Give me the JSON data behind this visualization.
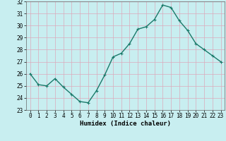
{
  "x": [
    0,
    1,
    2,
    3,
    4,
    5,
    6,
    7,
    8,
    9,
    10,
    11,
    12,
    13,
    14,
    15,
    16,
    17,
    18,
    19,
    20,
    21,
    22,
    23
  ],
  "y": [
    26.0,
    25.1,
    25.0,
    25.6,
    24.9,
    24.3,
    23.7,
    23.6,
    24.6,
    25.9,
    27.4,
    27.7,
    28.5,
    29.7,
    29.9,
    30.5,
    31.7,
    31.5,
    30.4,
    29.6,
    28.5,
    28.0,
    27.5,
    27.0
  ],
  "line_color": "#1a7a6a",
  "marker": "+",
  "marker_size": 3,
  "bg_color": "#c8eef0",
  "grid_color": "#dbaabb",
  "xlabel": "Humidex (Indice chaleur)",
  "ylim": [
    23,
    32
  ],
  "xlim": [
    -0.5,
    23.5
  ],
  "yticks": [
    23,
    24,
    25,
    26,
    27,
    28,
    29,
    30,
    31,
    32
  ],
  "xticks": [
    0,
    1,
    2,
    3,
    4,
    5,
    6,
    7,
    8,
    9,
    10,
    11,
    12,
    13,
    14,
    15,
    16,
    17,
    18,
    19,
    20,
    21,
    22,
    23
  ],
  "tick_fontsize": 5.5,
  "xlabel_fontsize": 6.5,
  "line_width": 1.0
}
